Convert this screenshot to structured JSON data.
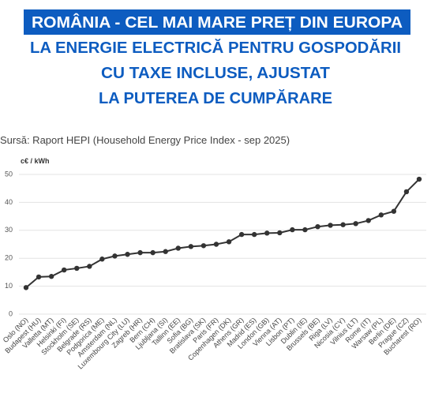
{
  "chart_data": {
    "type": "line",
    "title": "ROMÂNIA - CEL MAI MARE PREȚ DIN EUROPA",
    "subtitle": [
      "LA ENERGIE ELECTRICĂ PENTRU GOSPODĂRII",
      "CU TAXE INCLUSE, AJUSTAT",
      "LA PUTEREA DE CUMPĂRARE"
    ],
    "source": "Sursă: Raport HEPI (Household Energy Price Index - sep 2025)",
    "y_label": "c€ / kWh",
    "categories": [
      "Oslo (NO)",
      "Budapest (HU)",
      "Valletta (MT)",
      "Helsinki (FI)",
      "Stockholm (SE)",
      "Belgrade (RS)",
      "Podgorica (ME)",
      "Amsterdam (NL)",
      "Luxembourg City (LU)",
      "Zagreb (HR)",
      "Bern (CH)",
      "Ljubljana (SI)",
      "Tallinn (EE)",
      "Sofia (BG)",
      "Bratislava (SK)",
      "Paris (FR)",
      "Copenhagen (DK)",
      "Athens (GR)",
      "Madrid (ES)",
      "London (GB)",
      "Vienna (AT)",
      "Lisbon (PT)",
      "Dublin (IE)",
      "Brussels (BE)",
      "Riga (LV)",
      "Nicosia (CY)",
      "Vilnius (LT)",
      "Rome (IT)",
      "Warsaw (PL)",
      "Berlin (DE)",
      "Prague (CZ)",
      "Bucharest (RO)"
    ],
    "values": [
      9.5,
      13.3,
      13.5,
      15.8,
      16.4,
      17.1,
      19.7,
      20.8,
      21.4,
      22,
      22,
      22.4,
      23.6,
      24.2,
      24.5,
      25,
      25.9,
      28.5,
      28.5,
      29,
      29.1,
      30.2,
      30.2,
      31.3,
      31.8,
      32,
      32.4,
      33.5,
      35.5,
      36.8,
      43.8,
      48.3
    ],
    "color": "#333333",
    "ylim": [
      0,
      50
    ],
    "yticks": [
      0,
      10,
      20,
      30,
      40,
      50
    ],
    "grid": true
  }
}
